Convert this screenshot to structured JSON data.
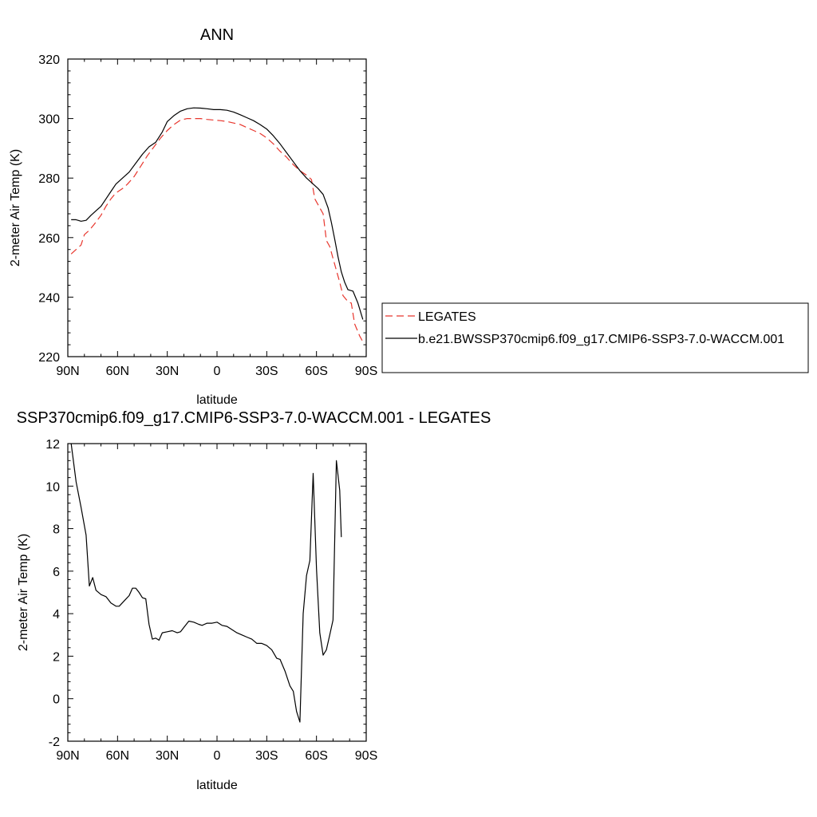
{
  "chart_data": [
    {
      "type": "line",
      "title": "ANN",
      "xlabel": "latitude",
      "ylabel": "2-meter Air Temp (K)",
      "xlim": [
        90,
        -90
      ],
      "ylim": [
        220,
        320
      ],
      "x_ticks": [
        90,
        60,
        30,
        0,
        -30,
        -60,
        -90
      ],
      "x_tick_labels": [
        "90N",
        "60N",
        "30N",
        "0",
        "30S",
        "60S",
        "90S"
      ],
      "y_ticks": [
        220,
        240,
        260,
        280,
        300,
        320
      ],
      "y_tick_labels": [
        "220",
        "240",
        "260",
        "280",
        "300",
        "320"
      ],
      "legend_position": "right",
      "series": [
        {
          "name": "LEGATES",
          "color": "#e8362d",
          "dash": "dashed",
          "points": [
            [
              88,
              254.5
            ],
            [
              85,
              256
            ],
            [
              82,
              257.5
            ],
            [
              80,
              261
            ],
            [
              77,
              262.5
            ],
            [
              74,
              264.5
            ],
            [
              70,
              267.5
            ],
            [
              67,
              270.5
            ],
            [
              64,
              273
            ],
            [
              61,
              275
            ],
            [
              57,
              276.5
            ],
            [
              54,
              278
            ],
            [
              50,
              280.5
            ],
            [
              46,
              284
            ],
            [
              42,
              287.5
            ],
            [
              38,
              290.5
            ],
            [
              34,
              293.5
            ],
            [
              30,
              296
            ],
            [
              26,
              298
            ],
            [
              22,
              299.5
            ],
            [
              18,
              300
            ],
            [
              14,
              300
            ],
            [
              10,
              300
            ],
            [
              6,
              299.7
            ],
            [
              2,
              299.5
            ],
            [
              -2,
              299.3
            ],
            [
              -6,
              299
            ],
            [
              -10,
              298.5
            ],
            [
              -14,
              298
            ],
            [
              -18,
              297
            ],
            [
              -22,
              296
            ],
            [
              -26,
              295
            ],
            [
              -30,
              293.5
            ],
            [
              -34,
              291.5
            ],
            [
              -38,
              289
            ],
            [
              -42,
              287
            ],
            [
              -46,
              284.5
            ],
            [
              -50,
              282.5
            ],
            [
              -54,
              281
            ],
            [
              -57,
              279.5
            ],
            [
              -59,
              273
            ],
            [
              -62,
              270
            ],
            [
              -64,
              268
            ],
            [
              -66,
              259
            ],
            [
              -68,
              257
            ],
            [
              -70,
              253
            ],
            [
              -72,
              249
            ],
            [
              -74,
              245
            ],
            [
              -76,
              240.5
            ],
            [
              -79,
              238.5
            ],
            [
              -81,
              238
            ],
            [
              -83,
              231
            ],
            [
              -86,
              227
            ],
            [
              -88,
              225
            ]
          ]
        },
        {
          "name": "b.e21.BWSSP370cmip6.f09_g17.CMIP6-SSP3-7.0-WACCM.001",
          "color": "#000000",
          "dash": "solid",
          "points": [
            [
              88,
              266
            ],
            [
              85,
              266
            ],
            [
              82,
              265.5
            ],
            [
              79,
              265.8
            ],
            [
              76,
              267.5
            ],
            [
              73,
              269
            ],
            [
              70,
              270.5
            ],
            [
              67,
              273
            ],
            [
              64,
              275.5
            ],
            [
              61,
              278
            ],
            [
              57,
              280
            ],
            [
              53,
              282
            ],
            [
              49,
              285
            ],
            [
              45,
              288
            ],
            [
              41,
              290.5
            ],
            [
              37,
              292
            ],
            [
              33,
              295.5
            ],
            [
              30,
              299
            ],
            [
              26,
              301
            ],
            [
              22,
              302.5
            ],
            [
              18,
              303.3
            ],
            [
              14,
              303.6
            ],
            [
              10,
              303.5
            ],
            [
              6,
              303.3
            ],
            [
              2,
              303
            ],
            [
              -2,
              303
            ],
            [
              -6,
              302.8
            ],
            [
              -10,
              302.2
            ],
            [
              -14,
              301.3
            ],
            [
              -18,
              300.3
            ],
            [
              -22,
              299.3
            ],
            [
              -26,
              298
            ],
            [
              -30,
              296.5
            ],
            [
              -34,
              294.2
            ],
            [
              -38,
              291.5
            ],
            [
              -42,
              288.5
            ],
            [
              -46,
              285.5
            ],
            [
              -50,
              282.5
            ],
            [
              -54,
              280
            ],
            [
              -58,
              278
            ],
            [
              -61,
              276.5
            ],
            [
              -64,
              274.5
            ],
            [
              -67,
              270
            ],
            [
              -69,
              265
            ],
            [
              -71,
              259.5
            ],
            [
              -73,
              253.5
            ],
            [
              -75,
              248.5
            ],
            [
              -77,
              245
            ],
            [
              -79,
              242.5
            ],
            [
              -82,
              242
            ],
            [
              -85,
              238
            ],
            [
              -88,
              232.5
            ]
          ]
        }
      ]
    },
    {
      "type": "line",
      "title": "SSP370cmip6.f09_g17.CMIP6-SSP3-7.0-WACCM.001 - LEGATES",
      "xlabel": "latitude",
      "ylabel": "2-meter Air Temp (K)",
      "xlim": [
        90,
        -90
      ],
      "ylim": [
        -2,
        12
      ],
      "x_ticks": [
        90,
        60,
        30,
        0,
        -30,
        -60,
        -90
      ],
      "x_tick_labels": [
        "90N",
        "60N",
        "30N",
        "0",
        "30S",
        "60S",
        "90S"
      ],
      "y_ticks": [
        -2,
        0,
        2,
        4,
        6,
        8,
        10,
        12
      ],
      "y_tick_labels": [
        "-2",
        "0",
        "2",
        "4",
        "6",
        "8",
        "10",
        "12"
      ],
      "series": [
        {
          "color": "#000000",
          "dash": "solid",
          "points": [
            [
              88,
              12
            ],
            [
              85,
              10.2
            ],
            [
              82,
              9
            ],
            [
              79,
              7.7
            ],
            [
              77,
              5.3
            ],
            [
              75,
              5.7
            ],
            [
              73,
              5.1
            ],
            [
              70,
              4.9
            ],
            [
              67,
              4.8
            ],
            [
              64,
              4.5
            ],
            [
              61,
              4.35
            ],
            [
              59,
              4.35
            ],
            [
              56,
              4.6
            ],
            [
              53,
              4.85
            ],
            [
              51,
              5.2
            ],
            [
              49,
              5.2
            ],
            [
              47,
              5.0
            ],
            [
              45,
              4.75
            ],
            [
              43,
              4.7
            ],
            [
              41,
              3.5
            ],
            [
              39,
              2.8
            ],
            [
              37,
              2.85
            ],
            [
              35,
              2.75
            ],
            [
              33,
              3.1
            ],
            [
              30,
              3.15
            ],
            [
              27,
              3.2
            ],
            [
              24,
              3.1
            ],
            [
              22,
              3.15
            ],
            [
              19,
              3.45
            ],
            [
              17,
              3.65
            ],
            [
              14,
              3.6
            ],
            [
              11,
              3.5
            ],
            [
              9,
              3.45
            ],
            [
              6,
              3.55
            ],
            [
              3,
              3.55
            ],
            [
              0,
              3.6
            ],
            [
              -3,
              3.45
            ],
            [
              -6,
              3.4
            ],
            [
              -9,
              3.25
            ],
            [
              -12,
              3.1
            ],
            [
              -15,
              3.0
            ],
            [
              -18,
              2.9
            ],
            [
              -21,
              2.8
            ],
            [
              -24,
              2.6
            ],
            [
              -27,
              2.6
            ],
            [
              -30,
              2.5
            ],
            [
              -33,
              2.3
            ],
            [
              -36,
              1.9
            ],
            [
              -38,
              1.85
            ],
            [
              -41,
              1.3
            ],
            [
              -44,
              0.6
            ],
            [
              -46,
              0.35
            ],
            [
              -48,
              -0.6
            ],
            [
              -50,
              -1.1
            ],
            [
              -52,
              4.0
            ],
            [
              -54,
              5.8
            ],
            [
              -56,
              6.5
            ],
            [
              -58,
              10.6
            ],
            [
              -60,
              6.1
            ],
            [
              -62,
              3.1
            ],
            [
              -64,
              2.05
            ],
            [
              -66,
              2.3
            ],
            [
              -68,
              3.0
            ],
            [
              -70,
              3.7
            ],
            [
              -72,
              11.2
            ],
            [
              -74,
              9.8
            ],
            [
              -75,
              7.6
            ]
          ]
        }
      ]
    }
  ]
}
